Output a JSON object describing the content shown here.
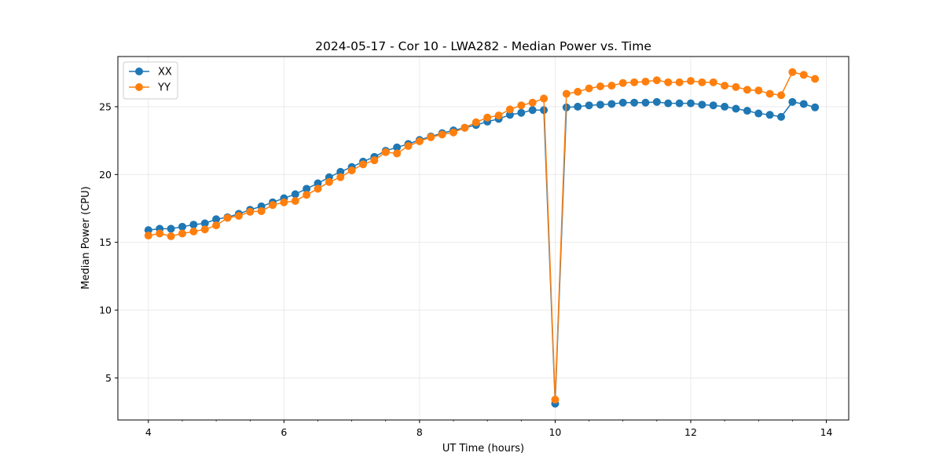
{
  "chart_data": {
    "type": "line",
    "title": "2024-05-17 - Cor 10 - LWA282 - Median Power vs. Time",
    "xlabel": "UT Time (hours)",
    "ylabel": "Median Power (CPU)",
    "xlim": [
      3.55,
      14.33
    ],
    "ylim": [
      1.9,
      28.7
    ],
    "xticks": [
      4,
      6,
      8,
      10,
      12,
      14
    ],
    "yticks": [
      5,
      10,
      15,
      20,
      25
    ],
    "grid": true,
    "legend_position": "top-left",
    "x": [
      4.0,
      4.1667,
      4.3333,
      4.5,
      4.6667,
      4.8333,
      5.0,
      5.1667,
      5.3333,
      5.5,
      5.6667,
      5.8333,
      6.0,
      6.1667,
      6.3333,
      6.5,
      6.6667,
      6.8333,
      7.0,
      7.1667,
      7.3333,
      7.5,
      7.6667,
      7.8333,
      8.0,
      8.1667,
      8.3333,
      8.5,
      8.6667,
      8.8333,
      9.0,
      9.1667,
      9.3333,
      9.5,
      9.6667,
      9.8333,
      10.0,
      10.1667,
      10.3333,
      10.5,
      10.6667,
      10.8333,
      11.0,
      11.1667,
      11.3333,
      11.5,
      11.6667,
      11.8333,
      12.0,
      12.1667,
      12.3333,
      12.5,
      12.6667,
      12.8333,
      13.0,
      13.1667,
      13.3333,
      13.5,
      13.6667,
      13.8333
    ],
    "series": [
      {
        "name": "XX",
        "color": "#1f77b4",
        "values": [
          15.9,
          16.0,
          16.0,
          16.15,
          16.3,
          16.4,
          16.7,
          16.85,
          17.1,
          17.4,
          17.65,
          17.95,
          18.25,
          18.55,
          18.95,
          19.35,
          19.8,
          20.2,
          20.55,
          20.95,
          21.3,
          21.75,
          22.0,
          22.25,
          22.55,
          22.8,
          23.05,
          23.25,
          23.45,
          23.65,
          23.9,
          24.1,
          24.4,
          24.55,
          24.75,
          24.75,
          3.1,
          24.95,
          25.0,
          25.1,
          25.15,
          25.2,
          25.3,
          25.3,
          25.3,
          25.35,
          25.25,
          25.25,
          25.25,
          25.15,
          25.1,
          25.0,
          24.85,
          24.7,
          24.5,
          24.4,
          24.25,
          25.35,
          25.2,
          24.95
        ]
      },
      {
        "name": "YY",
        "color": "#ff7f0e",
        "values": [
          15.5,
          15.65,
          15.45,
          15.65,
          15.8,
          15.95,
          16.25,
          16.8,
          16.95,
          17.25,
          17.3,
          17.75,
          17.95,
          18.05,
          18.5,
          18.95,
          19.45,
          19.8,
          20.3,
          20.75,
          21.05,
          21.65,
          21.55,
          22.1,
          22.45,
          22.75,
          22.95,
          23.1,
          23.45,
          23.85,
          24.2,
          24.35,
          24.8,
          25.1,
          25.3,
          25.6,
          3.4,
          25.95,
          26.1,
          26.35,
          26.5,
          26.55,
          26.75,
          26.8,
          26.85,
          26.95,
          26.8,
          26.8,
          26.9,
          26.8,
          26.8,
          26.55,
          26.45,
          26.25,
          26.2,
          25.95,
          25.85,
          27.55,
          27.35,
          27.05
        ]
      }
    ]
  }
}
